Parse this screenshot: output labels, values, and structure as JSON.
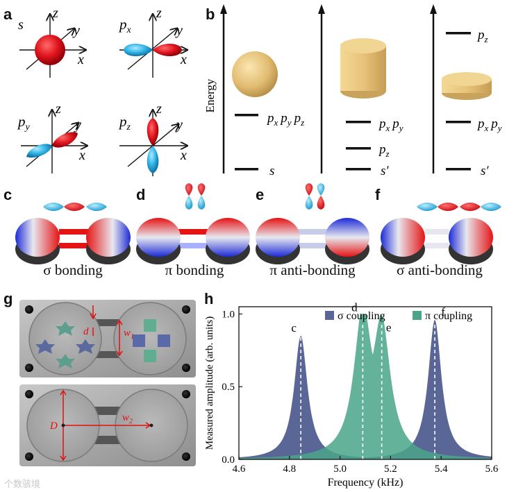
{
  "panels": {
    "a": "a",
    "b": "b",
    "c": "c",
    "d": "d",
    "e": "e",
    "f": "f",
    "g": "g",
    "h": "h"
  },
  "orbitals": {
    "s": "s",
    "px": "p",
    "px_sub": "x",
    "py": "p",
    "py_sub": "y",
    "pz": "p",
    "pz_sub": "z",
    "axis_x": "x",
    "axis_y": "y",
    "axis_z": "z"
  },
  "energy": {
    "axis_label": "Energy",
    "col1": {
      "upper": "pₓ pᵧ p_z",
      "upper_parts": [
        "p",
        "x",
        "p",
        "y",
        "p",
        "z"
      ],
      "lower": "s"
    },
    "col2": {
      "upper_parts": [
        "p",
        "x",
        "p",
        "y"
      ],
      "mid_parts": [
        "p",
        "z"
      ],
      "lower": "s′"
    },
    "col3": {
      "top_parts": [
        "p",
        "z"
      ],
      "upper_parts": [
        "p",
        "x",
        "p",
        "y"
      ],
      "lower": "s′"
    }
  },
  "modes": {
    "c": "σ bonding",
    "d": "π bonding",
    "e": "π anti-bonding",
    "f": "σ anti-bonding"
  },
  "photo": {
    "d_label": "d",
    "w1_label": "w",
    "w1_sub": "1",
    "D_label": "D",
    "w2_label": "w",
    "w2_sub": "2"
  },
  "chart_data": {
    "type": "area",
    "xlabel": "Frequency (kHz)",
    "ylabel": "Measured amplitude (arb. units)",
    "xlim": [
      4.6,
      5.6
    ],
    "ylim": [
      0.0,
      1.05
    ],
    "xticks": [
      "4.6",
      "4.8",
      "5.0",
      "5.2",
      "5.4",
      "5.6"
    ],
    "yticks": [
      "0.0",
      "0.5",
      "1.0"
    ],
    "legend": {
      "placement": "top-right"
    },
    "series": [
      {
        "name": "σ coupling",
        "color": "#5a6696",
        "peaks": [
          {
            "x": 4.845,
            "y": 0.85,
            "label": "c"
          },
          {
            "x": 5.375,
            "y": 0.96,
            "label": "f"
          }
        ]
      },
      {
        "name": "π coupling",
        "color": "#4aa58a",
        "peaks": [
          {
            "x": 5.09,
            "y": 1.0,
            "label": "d"
          },
          {
            "x": 5.165,
            "y": 0.91,
            "label": "e"
          }
        ]
      }
    ],
    "markers": [
      4.845,
      5.09,
      5.165,
      5.375
    ]
  },
  "watermark": "个数骇境"
}
